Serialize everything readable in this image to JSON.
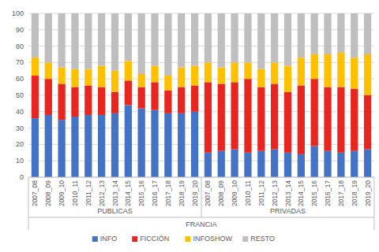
{
  "chart_data": {
    "type": "bar",
    "stacked": true,
    "grid": true,
    "legend": "bottom",
    "xlabel": "FRANCIA",
    "groups": [
      "PUBLICAS",
      "PRIVADAS"
    ],
    "categories": [
      "2007_08",
      "2008_09",
      "2009_10",
      "2010_11",
      "2011_12",
      "2012_13",
      "2013_14",
      "2014_15",
      "2015_16",
      "2016_17",
      "2017_18",
      "2018_19",
      "2019_20",
      "2007_08",
      "2008_09",
      "2009_10",
      "2010_11",
      "2011_12",
      "2012_13",
      "2013_14",
      "2014_15",
      "2015_16",
      "2016_17",
      "2017_18",
      "2018_19",
      "2019_20"
    ],
    "ylim": [
      0,
      100
    ],
    "yticks": [
      0,
      10,
      20,
      30,
      40,
      50,
      60,
      70,
      80,
      90,
      100
    ],
    "series": [
      {
        "name": "INFO",
        "color": "#4472c4",
        "values": [
          36,
          38,
          35,
          37,
          38,
          38,
          39,
          44,
          42,
          41,
          39,
          39,
          40,
          15,
          16,
          17,
          15,
          16,
          17,
          15,
          14,
          19,
          16,
          15,
          16,
          17
        ]
      },
      {
        "name": "FICCIÓN",
        "color": "#e8251f",
        "values": [
          26,
          22,
          22,
          18,
          18,
          17,
          13,
          15,
          13,
          17,
          14,
          16,
          16,
          43,
          41,
          41,
          45,
          39,
          40,
          37,
          42,
          41,
          39,
          40,
          38,
          33
        ]
      },
      {
        "name": "INFOSHOW",
        "color": "#ffc000",
        "values": [
          11,
          10,
          10,
          11,
          10,
          13,
          13,
          12,
          8,
          10,
          9,
          12,
          12,
          12,
          10,
          12,
          10,
          11,
          13,
          16,
          17,
          15,
          20,
          21,
          19,
          25
        ]
      },
      {
        "name": "RESTO",
        "color": "#bfbfbf",
        "values": [
          27,
          30,
          33,
          34,
          34,
          32,
          35,
          29,
          37,
          32,
          38,
          33,
          32,
          30,
          33,
          30,
          30,
          34,
          30,
          32,
          27,
          25,
          25,
          24,
          27,
          25
        ]
      }
    ]
  }
}
